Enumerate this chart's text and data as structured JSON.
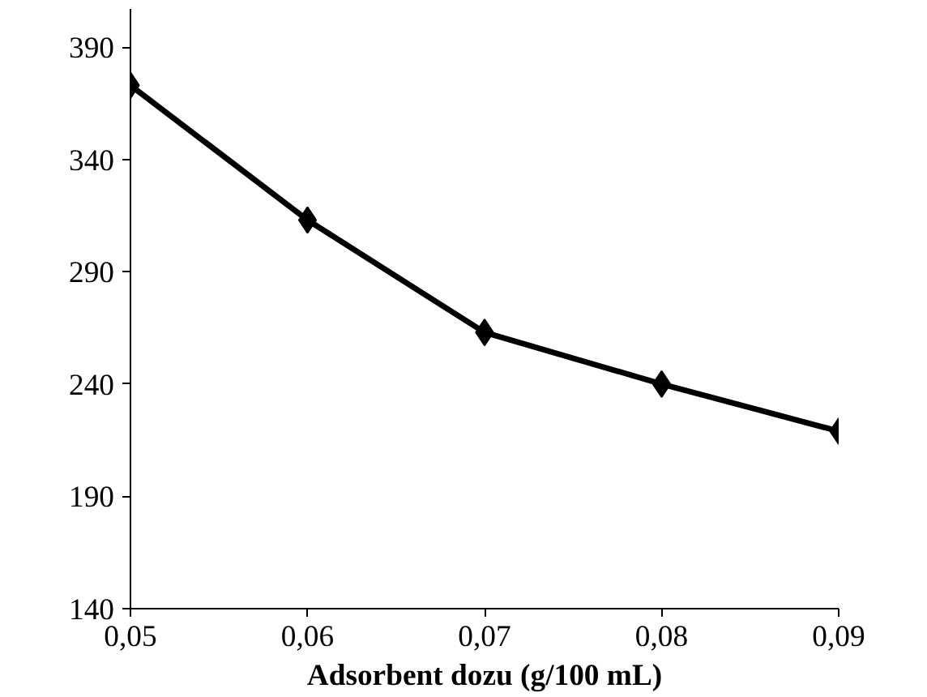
{
  "chart_data": {
    "type": "line",
    "xlabel": "Adsorbent dozu (g/100 mL)",
    "x": [
      0.05,
      0.06,
      0.07,
      0.08,
      0.09
    ],
    "series": [
      {
        "color": "#000000",
        "values": [
          373,
          313,
          263,
          240,
          219
        ]
      }
    ],
    "xlim": [
      0.05,
      0.09
    ],
    "xticks": [
      {
        "value": 0.05,
        "label": "0,05"
      },
      {
        "value": 0.06,
        "label": "0,06"
      },
      {
        "value": 0.07,
        "label": "0,07"
      },
      {
        "value": 0.08,
        "label": "0,08"
      },
      {
        "value": 0.09,
        "label": "0,09"
      }
    ],
    "ylim": [
      140,
      407
    ],
    "yticks": [
      140,
      190,
      240,
      290,
      340,
      390
    ],
    "grid": false,
    "marker": "diamond",
    "line_style": "solid"
  }
}
